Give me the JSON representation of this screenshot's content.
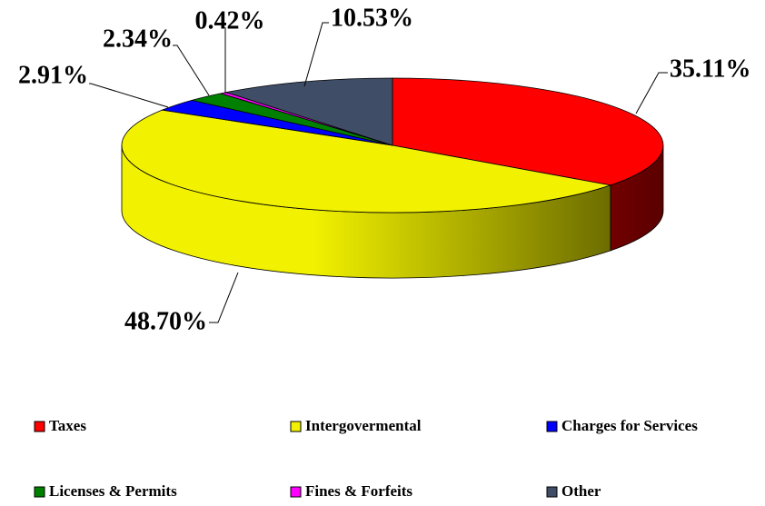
{
  "chart_data": {
    "type": "pie3d",
    "categories": [
      "Taxes",
      "Intergovermental",
      "Charges for Services",
      "Licenses & Permits",
      "Fines & Forfeits",
      "Other"
    ],
    "values": [
      35.11,
      48.7,
      2.91,
      2.34,
      0.42,
      10.53
    ],
    "value_labels": [
      "35.11%",
      "48.70%",
      "2.91%",
      "2.34%",
      "0.42%",
      "10.53%"
    ],
    "colors": [
      "#ff0000",
      "#f2f200",
      "#0000ff",
      "#008000",
      "#ff00ff",
      "#3f4d66"
    ],
    "legend": "bottom"
  }
}
